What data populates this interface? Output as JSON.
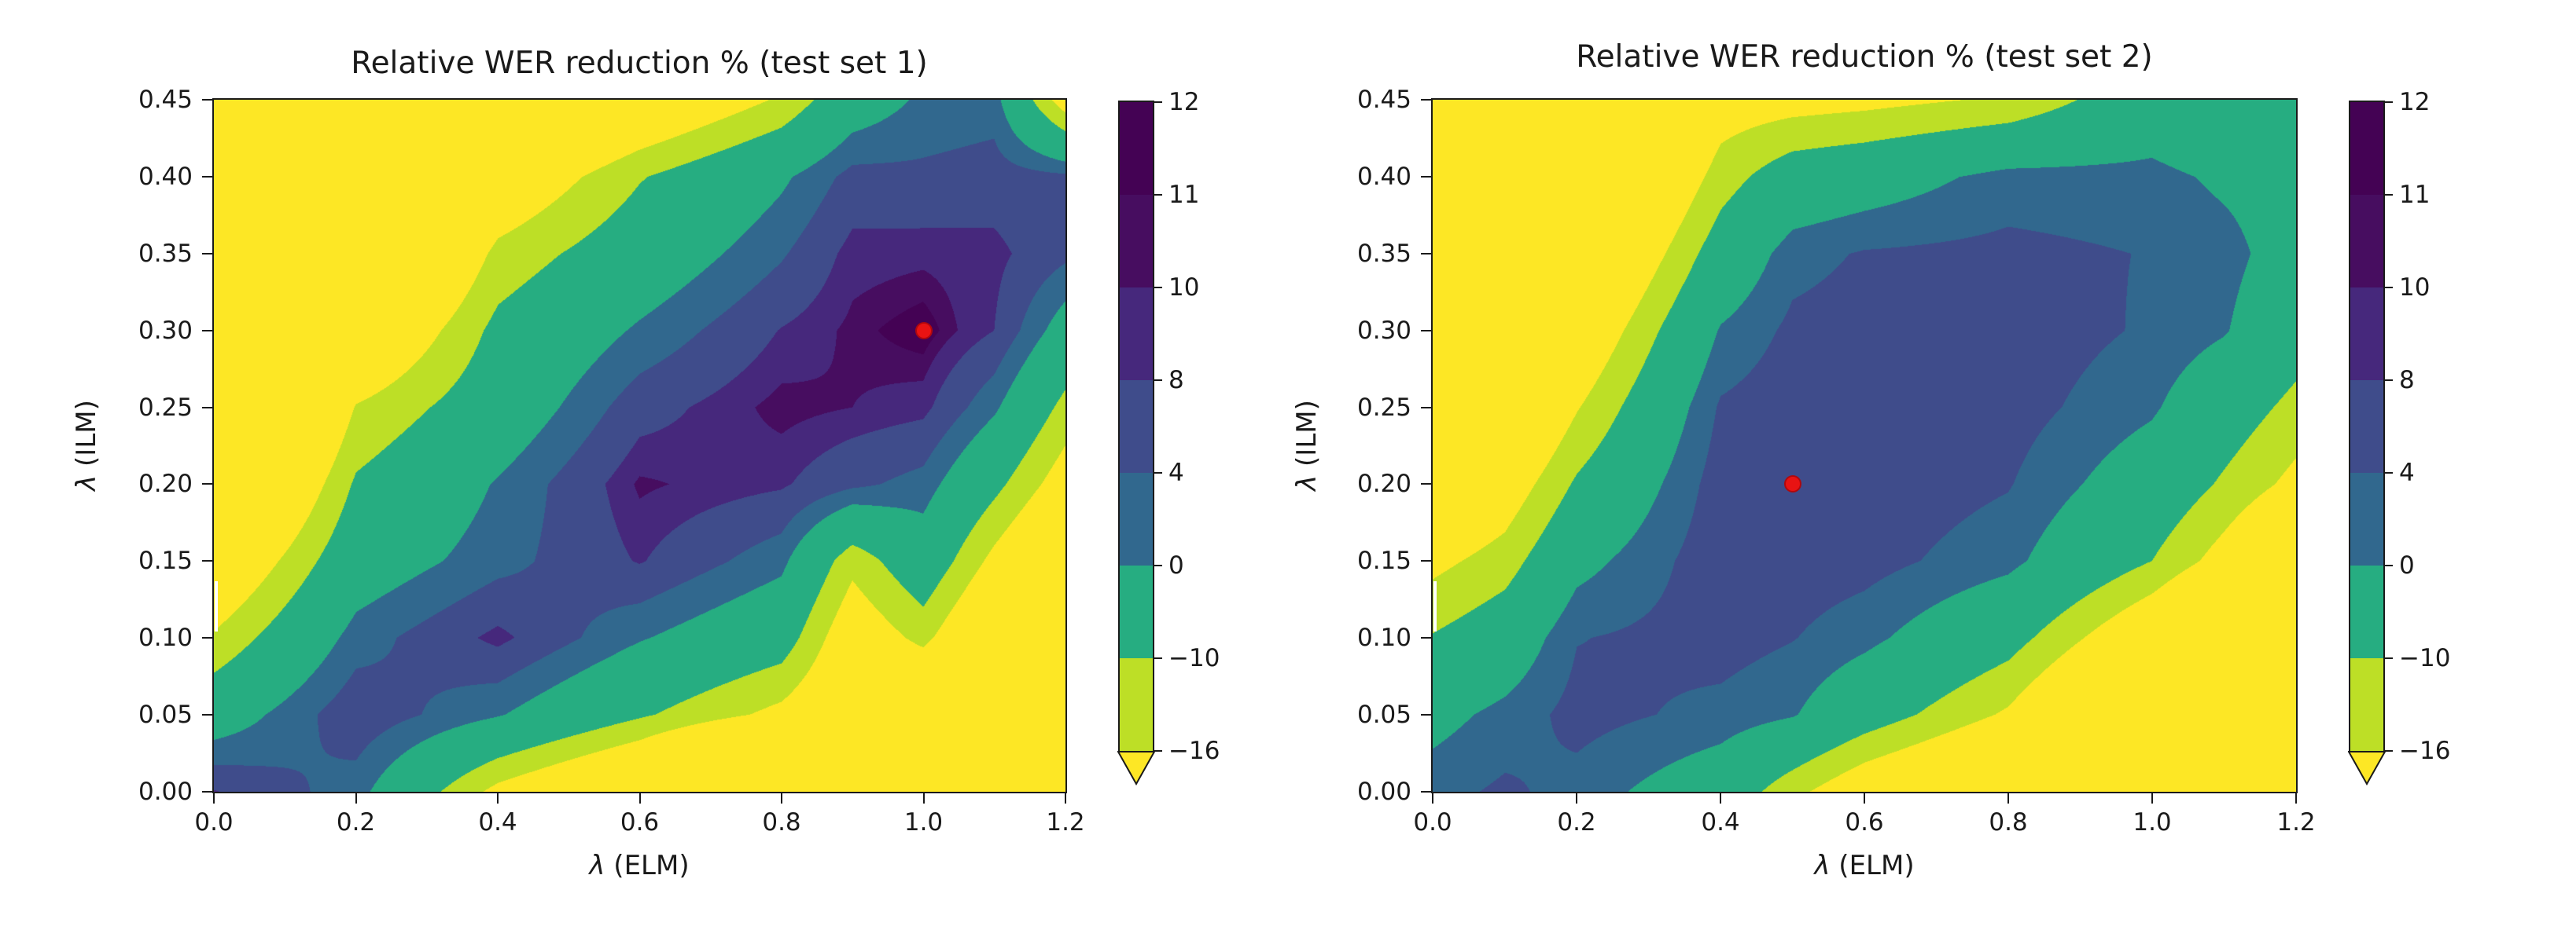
{
  "ui": {
    "background": "#ffffff",
    "text_color": "#1a1a1a"
  },
  "chart_data": {
    "type": "contour_filled",
    "colormap": "viridis_r",
    "levels": [
      -16,
      -10,
      0,
      4,
      8,
      10,
      11,
      12
    ],
    "band_colors": [
      "#bddf26",
      "#26ad81",
      "#31688e",
      "#3f4c8b",
      "#46287c",
      "#470d60",
      "#440254"
    ],
    "under_color": "#fde725",
    "marker_color": "#e81313",
    "x_range": [
      0,
      1.2
    ],
    "y_range": [
      0,
      0.45
    ],
    "colorbar": {
      "extend": "min",
      "tick_labels_top_to_bottom": [
        "12",
        "11",
        "10",
        "8",
        "4",
        "0",
        "−10",
        "−16"
      ]
    },
    "plots": [
      {
        "title": "Relative WER reduction % (test set 1)",
        "xlabel_symbol": "λ",
        "xlabel_rest": " (ELM)",
        "ylabel_symbol": "λ",
        "ylabel_rest": " (ILM)",
        "x_tick_labels": [
          "0.0",
          "0.2",
          "0.4",
          "0.6",
          "0.8",
          "1.0",
          "1.2"
        ],
        "x_tick_values": [
          0,
          0.2,
          0.4,
          0.6,
          0.8,
          1.0,
          1.2
        ],
        "y_tick_labels": [
          "0.00",
          "0.05",
          "0.10",
          "0.15",
          "0.20",
          "0.25",
          "0.30",
          "0.35",
          "0.40",
          "0.45"
        ],
        "y_tick_values": [
          0,
          0.05,
          0.1,
          0.15,
          0.2,
          0.25,
          0.3,
          0.35,
          0.4,
          0.45
        ],
        "optimum": {
          "x": 1.0,
          "y": 0.3
        },
        "grid": {
          "xs": [
            0,
            0.2,
            0.4,
            0.6,
            0.8,
            0.9,
            1.0,
            1.1,
            1.2
          ],
          "ys": [
            0,
            0.05,
            0.1,
            0.15,
            0.2,
            0.25,
            0.3,
            0.35,
            0.4,
            0.45
          ],
          "values": [
            [
              8.2,
              2,
              -18,
              -30,
              -55,
              -72,
              -90,
              -100,
              -130
            ],
            [
              -4,
              7,
              0.5,
              -9,
              -18,
              -26,
              -30,
              -45,
              -60
            ],
            [
              -15,
              2,
              9,
              0.5,
              -6,
              -22,
              -14,
              -28,
              -40
            ],
            [
              -26,
              -4,
              2.5,
              8.3,
              1.5,
              -14,
              -4,
              -18,
              -30
            ],
            [
              -40,
              -9,
              0.5,
              10.4,
              8.5,
              5,
              2.5,
              -8,
              -20
            ],
            [
              -54,
              -15.5,
              -5,
              6.5,
              10.8,
              10,
              9,
              1,
              -12
            ],
            [
              -68,
              -28,
              -8,
              0.8,
              8.2,
              10.5,
              11.9,
              8,
              -3
            ],
            [
              -82,
              -42,
              -14,
              -5,
              3.5,
              9.2,
              9.5,
              9,
              5
            ],
            [
              -96,
              -56,
              -24,
              -10.5,
              -1,
              5.5,
              5,
              6,
              5
            ],
            [
              -110,
              -70,
              -38,
              -26,
              -15,
              -4,
              1,
              2,
              -20
            ]
          ]
        }
      },
      {
        "title": "Relative WER reduction % (test set 2)",
        "xlabel_symbol": "λ",
        "xlabel_rest": " (ELM)",
        "ylabel_symbol": "λ",
        "ylabel_rest": " (ILM)",
        "x_tick_labels": [
          "0.0",
          "0.2",
          "0.4",
          "0.6",
          "0.8",
          "1.0",
          "1.2"
        ],
        "x_tick_values": [
          0,
          0.2,
          0.4,
          0.6,
          0.8,
          1.0,
          1.2
        ],
        "y_tick_labels": [
          "0.00",
          "0.05",
          "0.10",
          "0.15",
          "0.20",
          "0.25",
          "0.30",
          "0.35",
          "0.40",
          "0.45"
        ],
        "y_tick_values": [
          0,
          0.05,
          0.1,
          0.15,
          0.2,
          0.25,
          0.3,
          0.35,
          0.4,
          0.45
        ],
        "optimum": {
          "x": 0.5,
          "y": 0.2
        },
        "grid": {
          "xs": [
            0,
            0.1,
            0.2,
            0.4,
            0.5,
            0.6,
            0.8,
            1.0,
            1.1,
            1.2
          ],
          "ys": [
            0,
            0.05,
            0.1,
            0.15,
            0.2,
            0.25,
            0.3,
            0.35,
            0.4,
            0.45
          ],
          "values": [
            [
              2.5,
              4.8,
              2.5,
              -4.5,
              -14,
              -22,
              -32,
              -60,
              -75,
              -90
            ],
            [
              -2,
              1.5,
              5.5,
              2.8,
              0.5,
              -6,
              -17,
              -38,
              -52,
              -65
            ],
            [
              -9.5,
              -5,
              3.8,
              5.8,
              4.2,
              1.5,
              -7,
              -24,
              -36,
              -48
            ],
            [
              -18,
              -13,
              -2,
              6.8,
              6.4,
              5.6,
              1.5,
              -10,
              -19,
              -30
            ],
            [
              -28,
              -21,
              -9,
              6.2,
              7.3,
              6.8,
              4.3,
              -4,
              -11,
              -18
            ],
            [
              -38,
              -30,
              -16.5,
              4.6,
              6.6,
              6.9,
              5.9,
              0.8,
              -5.5,
              -12
            ],
            [
              -48,
              -39,
              -24,
              0.5,
              5,
              5.8,
              6.6,
              3.4,
              0.5,
              -6
            ],
            [
              -58,
              -48,
              -32,
              -6,
              2.5,
              4.4,
              5.2,
              3.8,
              1.8,
              -3
            ],
            [
              -68,
              -57,
              -40,
              -13,
              -5.5,
              -3.5,
              1.8,
              1.5,
              -1,
              -2.5
            ],
            [
              -78,
              -66,
              -48,
              -20,
              -19,
              -18,
              -15,
              -4.5,
              -8,
              -4
            ]
          ]
        }
      }
    ]
  }
}
